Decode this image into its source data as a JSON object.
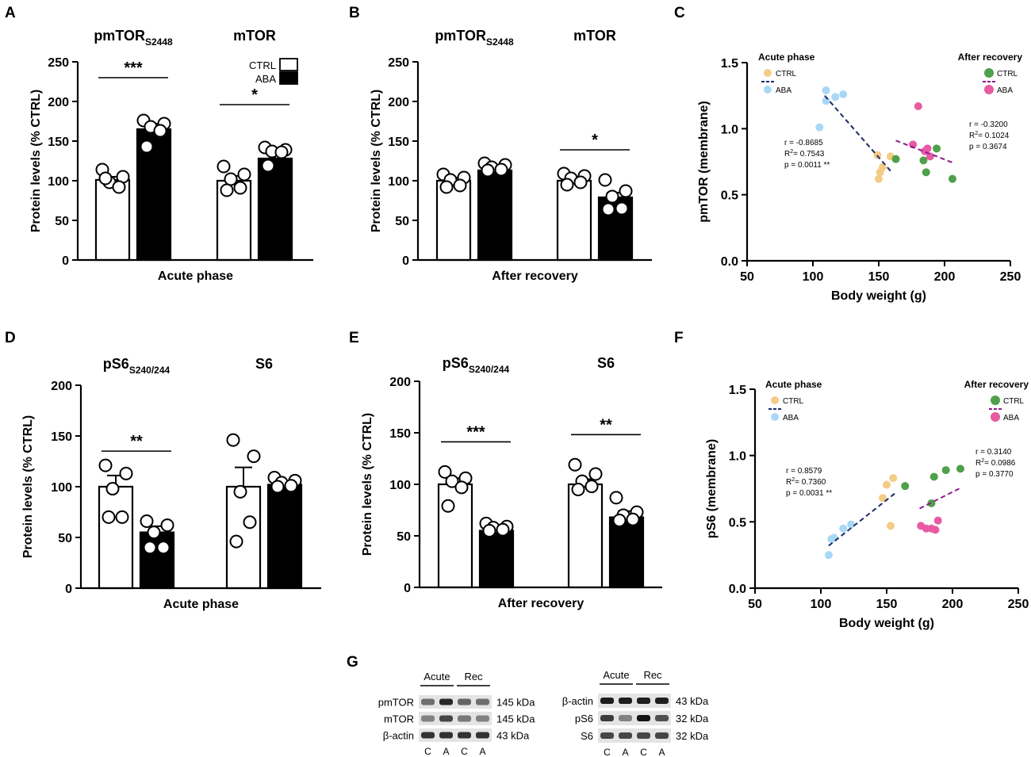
{
  "figure": {
    "colors": {
      "ctrl_acute": "#f5cc85",
      "aba_acute": "#a8d8f5",
      "ctrl_rec": "#4fa04a",
      "aba_rec": "#e85aa3",
      "reg_acute": "#1a2a6c",
      "reg_rec": "#8b1a8b",
      "bar_ctrl": "#ffffff",
      "bar_aba": "#000000"
    },
    "legend": {
      "ctrl": "CTRL",
      "aba": "ABA"
    },
    "panel_g": {
      "letter": "G",
      "blot1": {
        "groups": [
          "Acute",
          "Rec"
        ],
        "rows": [
          "pmTOR",
          "mTOR",
          "β-actin"
        ],
        "kda": [
          "145 kDa",
          "145 kDa",
          "43 kDa"
        ],
        "lanes": [
          "C",
          "A",
          "C",
          "A"
        ],
        "intensity": [
          [
            0.55,
            0.9,
            0.6,
            0.55
          ],
          [
            0.45,
            0.75,
            0.5,
            0.45
          ],
          [
            0.85,
            0.85,
            0.85,
            0.85
          ]
        ]
      },
      "blot2": {
        "groups": [
          "Acute",
          "Rec"
        ],
        "rows": [
          "β-actin",
          "pS6",
          "S6"
        ],
        "kda": [
          "43 kDa",
          "32 kDa",
          "32 kDa"
        ],
        "lanes": [
          "C",
          "A",
          "C",
          "A"
        ],
        "intensity": [
          [
            0.95,
            0.95,
            0.95,
            0.95
          ],
          [
            0.8,
            0.45,
            1.0,
            0.7
          ],
          [
            0.75,
            0.75,
            0.75,
            0.75
          ]
        ]
      }
    }
  },
  "chart_data": [
    {
      "panel": "A",
      "type": "bar",
      "groups": [
        {
          "title": "pmTOR",
          "sub": "S2448",
          "ctrl_mean": 101,
          "aba_mean": 165,
          "ctrl_sem": 4,
          "aba_sem": 7,
          "ctrl_points": [
            114,
            105,
            98,
            92,
            103
          ],
          "aba_points": [
            176,
            172,
            168,
            163,
            143
          ],
          "sig": "***"
        },
        {
          "title": "mTOR",
          "sub": "",
          "ctrl_mean": 100,
          "aba_mean": 128,
          "ctrl_sem": 6,
          "aba_sem": 5,
          "ctrl_points": [
            118,
            108,
            102,
            91,
            88
          ],
          "aba_points": [
            142,
            139,
            137,
            136,
            119
          ],
          "sig": "*"
        }
      ],
      "ylabel": "Protein levels (% CTRL)",
      "xlabel": "Acute phase",
      "yticks": [
        "0",
        "50",
        "100",
        "150",
        "200",
        "250"
      ],
      "ylim": [
        0,
        250
      ]
    },
    {
      "panel": "B",
      "type": "bar",
      "groups": [
        {
          "title": "pmTOR",
          "sub": "S2448",
          "ctrl_mean": 100,
          "aba_mean": 113,
          "ctrl_sem": 4,
          "aba_sem": 3,
          "ctrl_points": [
            108,
            104,
            101,
            94,
            92
          ],
          "aba_points": [
            122,
            120,
            117,
            114,
            113
          ],
          "sig": ""
        },
        {
          "title": "mTOR",
          "sub": "",
          "ctrl_mean": 100,
          "aba_mean": 79,
          "ctrl_sem": 5,
          "aba_sem": 6,
          "ctrl_points": [
            109,
            106,
            103,
            98,
            95
          ],
          "aba_points": [
            101,
            87,
            80,
            65,
            64
          ],
          "sig": "*"
        }
      ],
      "ylabel": "Protein levels (% CTRL)",
      "xlabel": "After recovery",
      "yticks": [
        "0",
        "50",
        "100",
        "150",
        "200",
        "250"
      ],
      "ylim": [
        0,
        250
      ]
    },
    {
      "panel": "C",
      "type": "scatter",
      "xlabel": "Body weight (g)",
      "ylabel": "pmTOR (membrane)",
      "xticks": [
        "50",
        "100",
        "150",
        "200",
        "250"
      ],
      "yticks": [
        "0.0",
        "0.5",
        "1.0",
        "1.5"
      ],
      "xlim": [
        50,
        250
      ],
      "ylim": [
        0,
        1.5
      ],
      "acute_title": "Acute phase",
      "recovery_title": "After recovery",
      "series": [
        {
          "name": "CTRL acute",
          "points": [
            [
              149,
              0.8
            ],
            [
              151,
              0.67
            ],
            [
              150,
              0.62
            ],
            [
              153,
              0.71
            ],
            [
              159,
              0.79
            ]
          ]
        },
        {
          "name": "ABA acute",
          "points": [
            [
              105,
              1.01
            ],
            [
              110,
              1.29
            ],
            [
              110,
              1.21
            ],
            [
              117,
              1.24
            ],
            [
              123,
              1.26
            ]
          ]
        },
        {
          "name": "CTRL recovery",
          "points": [
            [
              163,
              0.77
            ],
            [
              184,
              0.76
            ],
            [
              186,
              0.67
            ],
            [
              194,
              0.85
            ],
            [
              206,
              0.62
            ]
          ]
        },
        {
          "name": "ABA recovery",
          "points": [
            [
              176,
              0.88
            ],
            [
              180,
              1.17
            ],
            [
              185,
              0.83
            ],
            [
              187,
              0.85
            ],
            [
              189,
              0.79
            ]
          ]
        }
      ],
      "reg_acute": {
        "x": [
          109,
          159
        ],
        "y": [
          1.25,
          0.68
        ]
      },
      "reg_recovery": {
        "x": [
          163,
          207
        ],
        "y": [
          0.91,
          0.74
        ]
      },
      "stats_acute": {
        "r": "r = -0.8685",
        "r2_prefix": "R",
        "r2_exp": "2",
        "r2_value": "= 0.7543",
        "p": "p = 0.0011 **"
      },
      "stats_recovery": {
        "r": "r = -0.3200",
        "r2_prefix": "R",
        "r2_exp": "2",
        "r2_value": "= 0.1024",
        "p": "p = 0.3674"
      }
    },
    {
      "panel": "D",
      "type": "bar",
      "groups": [
        {
          "title": "pS6",
          "sub": "S240/244",
          "ctrl_mean": 100,
          "aba_mean": 55,
          "ctrl_sem": 11,
          "aba_sem": 6,
          "ctrl_points": [
            121,
            113,
            98,
            70,
            70
          ],
          "aba_points": [
            66,
            62,
            55,
            40,
            40
          ],
          "sig": "**"
        },
        {
          "title": "S6",
          "sub": "",
          "ctrl_mean": 100,
          "aba_mean": 102,
          "ctrl_sem": 19,
          "aba_sem": 4,
          "ctrl_points": [
            146,
            130,
            95,
            65,
            46
          ],
          "aba_points": [
            109,
            106,
            104,
            101,
            100
          ],
          "sig": ""
        }
      ],
      "ylabel": "Protein levels (% CTRL)",
      "xlabel": "Acute phase",
      "yticks": [
        "0",
        "50",
        "100",
        "150",
        "200"
      ],
      "ylim": [
        0,
        200
      ]
    },
    {
      "panel": "E",
      "type": "bar",
      "groups": [
        {
          "title": "pS6",
          "sub": "S240/244",
          "ctrl_mean": 100,
          "aba_mean": 55,
          "ctrl_sem": 6,
          "aba_sem": 2,
          "ctrl_points": [
            112,
            106,
            103,
            97,
            79
          ],
          "aba_points": [
            62,
            59,
            58,
            56,
            55
          ],
          "sig": "***"
        },
        {
          "title": "S6",
          "sub": "",
          "ctrl_mean": 100,
          "aba_mean": 68,
          "ctrl_sem": 5,
          "aba_sem": 6,
          "ctrl_points": [
            119,
            110,
            103,
            98,
            95
          ],
          "aba_points": [
            87,
            73,
            70,
            66,
            65
          ],
          "sig": "**"
        }
      ],
      "ylabel": "Protein levels (% CTRL)",
      "xlabel": "After recovery",
      "yticks": [
        "0",
        "50",
        "100",
        "150",
        "200"
      ],
      "ylim": [
        0,
        200
      ]
    },
    {
      "panel": "F",
      "type": "scatter",
      "xlabel": "Body weight (g)",
      "ylabel": "pS6 (membrane)",
      "xticks": [
        "50",
        "100",
        "150",
        "200",
        "250"
      ],
      "yticks": [
        "0.0",
        "0.5",
        "1.0",
        "1.5"
      ],
      "xlim": [
        50,
        250
      ],
      "ylim": [
        0,
        1.5
      ],
      "acute_title": "Acute phase",
      "recovery_title": "After recovery",
      "series": [
        {
          "name": "CTRL acute",
          "points": [
            [
              147,
              0.68
            ],
            [
              150,
              0.78
            ],
            [
              153,
              0.47
            ],
            [
              155,
              0.83
            ]
          ]
        },
        {
          "name": "ABA acute",
          "points": [
            [
              106,
              0.25
            ],
            [
              108,
              0.37
            ],
            [
              110,
              0.38
            ],
            [
              117,
              0.45
            ],
            [
              123,
              0.48
            ]
          ]
        },
        {
          "name": "CTRL recovery",
          "points": [
            [
              164,
              0.77
            ],
            [
              184,
              0.64
            ],
            [
              186,
              0.84
            ],
            [
              195,
              0.89
            ],
            [
              206,
              0.9
            ]
          ]
        },
        {
          "name": "ABA recovery",
          "points": [
            [
              176,
              0.47
            ],
            [
              180,
              0.45
            ],
            [
              184,
              0.45
            ],
            [
              187,
              0.44
            ],
            [
              189,
              0.51
            ]
          ]
        }
      ],
      "reg_acute": {
        "x": [
          106,
          157
        ],
        "y": [
          0.32,
          0.72
        ]
      },
      "reg_recovery": {
        "x": [
          175,
          207
        ],
        "y": [
          0.6,
          0.76
        ]
      },
      "stats_acute": {
        "r": "r = 0.8579",
        "r2_prefix": "R",
        "r2_exp": "2",
        "r2_value": "= 0.7360",
        "p": "p = 0.0031 **"
      },
      "stats_recovery": {
        "r": "r = 0.3140",
        "r2_prefix": "R",
        "r2_exp": "2",
        "r2_value": "= 0.0986",
        "p": "p = 0.3770"
      }
    }
  ]
}
